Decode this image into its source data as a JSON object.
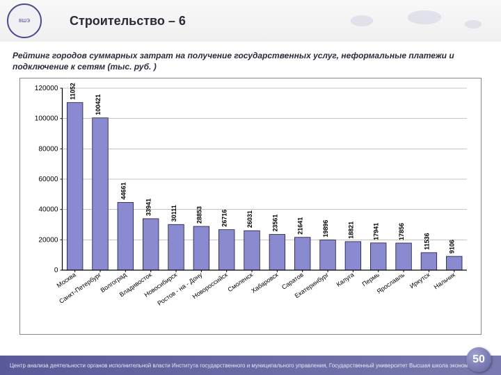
{
  "header": {
    "logo_text": "ВШЭ",
    "title": "Строительство – 6"
  },
  "subtitle": "Рейтинг городов суммарных затрат на получение государственных услуг, неформальные платежи и подключение к сетям (тыс. руб. )",
  "chart": {
    "type": "bar",
    "ylim": [
      0,
      120000
    ],
    "ytick_step": 20000,
    "bar_fill": "#8a8ad0",
    "bar_stroke": "#1a1a3a",
    "grid_color": "#888888",
    "axis_color": "#000000",
    "background": "#ffffff",
    "label_color": "#000000",
    "value_fontsize": 9,
    "axis_fontsize": 10,
    "xlabel_fontsize": 9,
    "bar_width_ratio": 0.62,
    "categories": [
      "Москва",
      "Санкт-Петербург",
      "Волгоград",
      "Владивосток",
      "Новосибирск",
      "Ростов - на - Дону",
      "Новороссийск",
      "Смоленск",
      "Хабаровск",
      "Саратов",
      "Екатеринбург",
      "Калуга",
      "Пермь",
      "Ярославль",
      "Иркутск",
      "Нальчик"
    ],
    "values": [
      110526,
      100421,
      44661,
      33941,
      30111,
      28853,
      26716,
      26031,
      23561,
      21641,
      19896,
      18821,
      17941,
      17856,
      11536,
      9106
    ]
  },
  "footer": {
    "text": "Центр анализа деятельности органов исполнительной власти Института государственного и муниципального управления, Государственный университет    Высшая школа экономики",
    "page": "50"
  }
}
